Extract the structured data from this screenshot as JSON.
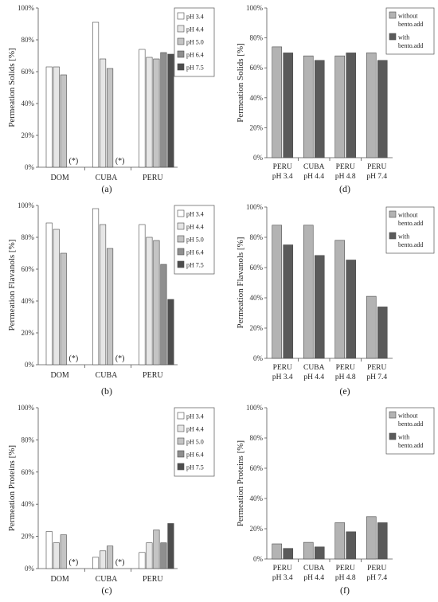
{
  "colors": {
    "pH 3.4": "#ffffff",
    "pH 4.4": "#e6e6e6",
    "pH 5.0": "#c4c4c4",
    "pH 6.4": "#8f8f8f",
    "pH 7.5": "#4d4d4d",
    "without": "#b3b3b3",
    "with": "#5a5a5a",
    "stroke": "#4a4a4a"
  },
  "chart_data": [
    {
      "id": "a",
      "type": "bar",
      "panel_label": "(a)",
      "ylabel": "Permeation Solids [%]",
      "ylim": [
        0,
        100
      ],
      "yticks": [
        0,
        20,
        40,
        60,
        80,
        100
      ],
      "ytick_suffix": "%",
      "categories": [
        "DOM",
        "CUBA",
        "PERU"
      ],
      "legend_placement": "top-right",
      "series": [
        {
          "name": "pH 3.4",
          "values": [
            63,
            91,
            74
          ]
        },
        {
          "name": "pH 4.4",
          "values": [
            63,
            68,
            69
          ]
        },
        {
          "name": "pH 5.0",
          "values": [
            58,
            62,
            68
          ]
        },
        {
          "name": "pH 6.4",
          "values": [
            null,
            null,
            72
          ]
        },
        {
          "name": "pH 7.5",
          "values": [
            null,
            null,
            71
          ]
        }
      ],
      "annotations": [
        {
          "category": 0,
          "text": "(*)"
        },
        {
          "category": 1,
          "text": "(*)"
        }
      ]
    },
    {
      "id": "d",
      "type": "bar",
      "panel_label": "(d)",
      "ylabel": "Permeation Solids [%]",
      "ylim": [
        0,
        100
      ],
      "yticks": [
        0,
        20,
        40,
        60,
        80,
        100
      ],
      "ytick_suffix": "%",
      "categories": [
        "PERU pH 3.4",
        "CUBA pH 4.4",
        "PERU pH 4.8",
        "PERU pH 7.4"
      ],
      "legend_placement": "top-right",
      "series": [
        {
          "name": "without bento.add",
          "values": [
            74,
            68,
            68,
            70
          ]
        },
        {
          "name": "with bento.add",
          "values": [
            70,
            65,
            70,
            65
          ]
        }
      ]
    },
    {
      "id": "b",
      "type": "bar",
      "panel_label": "(b)",
      "ylabel": "Permeation Flavanols [%]",
      "ylim": [
        0,
        100
      ],
      "yticks": [
        0,
        20,
        40,
        60,
        80,
        100
      ],
      "ytick_suffix": "%",
      "categories": [
        "DOM",
        "CUBA",
        "PERU"
      ],
      "legend_placement": "top-right",
      "series": [
        {
          "name": "pH 3.4",
          "values": [
            89,
            98,
            88
          ]
        },
        {
          "name": "pH 4.4",
          "values": [
            85,
            88,
            80
          ]
        },
        {
          "name": "pH 5.0",
          "values": [
            70,
            73,
            78
          ]
        },
        {
          "name": "pH 6.4",
          "values": [
            null,
            null,
            63
          ]
        },
        {
          "name": "pH 7.5",
          "values": [
            null,
            null,
            41
          ]
        }
      ],
      "annotations": [
        {
          "category": 0,
          "text": "(*)"
        },
        {
          "category": 1,
          "text": "(*)"
        }
      ]
    },
    {
      "id": "e",
      "type": "bar",
      "panel_label": "(e)",
      "ylabel": "Permeation Flavanols [%]",
      "ylim": [
        0,
        100
      ],
      "yticks": [
        0,
        20,
        40,
        60,
        80,
        100
      ],
      "ytick_suffix": "%",
      "categories": [
        "PERU pH 3.4",
        "CUBA pH 4.4",
        "PERU pH 4.8",
        "PERU pH 7.4"
      ],
      "legend_placement": "top-right",
      "series": [
        {
          "name": "without bento.add",
          "values": [
            88,
            88,
            78,
            41
          ]
        },
        {
          "name": "with bento.add",
          "values": [
            75,
            68,
            65,
            34
          ]
        }
      ]
    },
    {
      "id": "c",
      "type": "bar",
      "panel_label": "(c)",
      "ylabel": "Permeation Proteins [%]",
      "ylim": [
        0,
        100
      ],
      "yticks": [
        0,
        20,
        40,
        60,
        80,
        100
      ],
      "ytick_suffix": "%",
      "categories": [
        "DOM",
        "CUBA",
        "PERU"
      ],
      "legend_placement": "top-right",
      "series": [
        {
          "name": "pH 3.4",
          "values": [
            23,
            7,
            10
          ]
        },
        {
          "name": "pH 4.4",
          "values": [
            16,
            11,
            16
          ]
        },
        {
          "name": "pH 5.0",
          "values": [
            21,
            14,
            24
          ]
        },
        {
          "name": "pH 6.4",
          "values": [
            null,
            null,
            16
          ]
        },
        {
          "name": "pH 7.5",
          "values": [
            null,
            null,
            28
          ]
        }
      ],
      "annotations": [
        {
          "category": 0,
          "text": "(*)"
        },
        {
          "category": 1,
          "text": "(*)"
        }
      ]
    },
    {
      "id": "f",
      "type": "bar",
      "panel_label": "(f)",
      "ylabel": "Permeation Proteins [%]",
      "ylim": [
        0,
        100
      ],
      "yticks": [
        0,
        20,
        40,
        60,
        80,
        100
      ],
      "ytick_suffix": "%",
      "categories": [
        "PERU pH 3.4",
        "CUBA pH 4.4",
        "PERU pH 4.8",
        "PERU pH 7.4"
      ],
      "legend_placement": "top-right",
      "series": [
        {
          "name": "without bento.add",
          "values": [
            10,
            11,
            24,
            28
          ]
        },
        {
          "name": "with bento.add",
          "values": [
            7,
            8,
            18,
            24
          ]
        }
      ]
    }
  ]
}
